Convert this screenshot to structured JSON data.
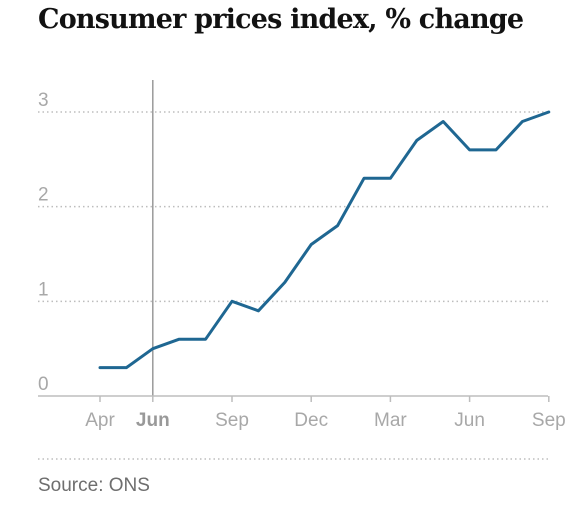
{
  "title": "Consumer prices index, % change",
  "source": "Source: ONS",
  "colors": {
    "line": "#1f6792",
    "grid": "#bdbdbd",
    "axis": "#bdbdbd",
    "text": "#a8a8a8",
    "marker": "#9a9a9a"
  },
  "chart_data": {
    "type": "line",
    "title": "Consumer prices index, % change",
    "xlabel": "",
    "ylabel": "",
    "ylim": [
      0,
      3
    ],
    "y_ticks": [
      "0",
      "1",
      "2",
      "3"
    ],
    "x_ticks": [
      {
        "label": "Apr",
        "index": 0,
        "bold": false
      },
      {
        "label": "Jun",
        "index": 2,
        "bold": true
      },
      {
        "label": "Sep",
        "index": 5,
        "bold": false
      },
      {
        "label": "Dec",
        "index": 8,
        "bold": false
      },
      {
        "label": "Mar",
        "index": 11,
        "bold": false
      },
      {
        "label": "Jun",
        "index": 14,
        "bold": false
      },
      {
        "label": "Sep",
        "index": 17,
        "bold": false
      }
    ],
    "reference_line_index": 2,
    "grid": "horizontal dotted",
    "series": [
      {
        "values": [
          0.3,
          0.3,
          0.5,
          0.6,
          0.6,
          1.0,
          0.9,
          1.2,
          1.6,
          1.8,
          2.3,
          2.3,
          2.7,
          2.9,
          2.6,
          2.6,
          2.9,
          3.0
        ]
      }
    ]
  }
}
